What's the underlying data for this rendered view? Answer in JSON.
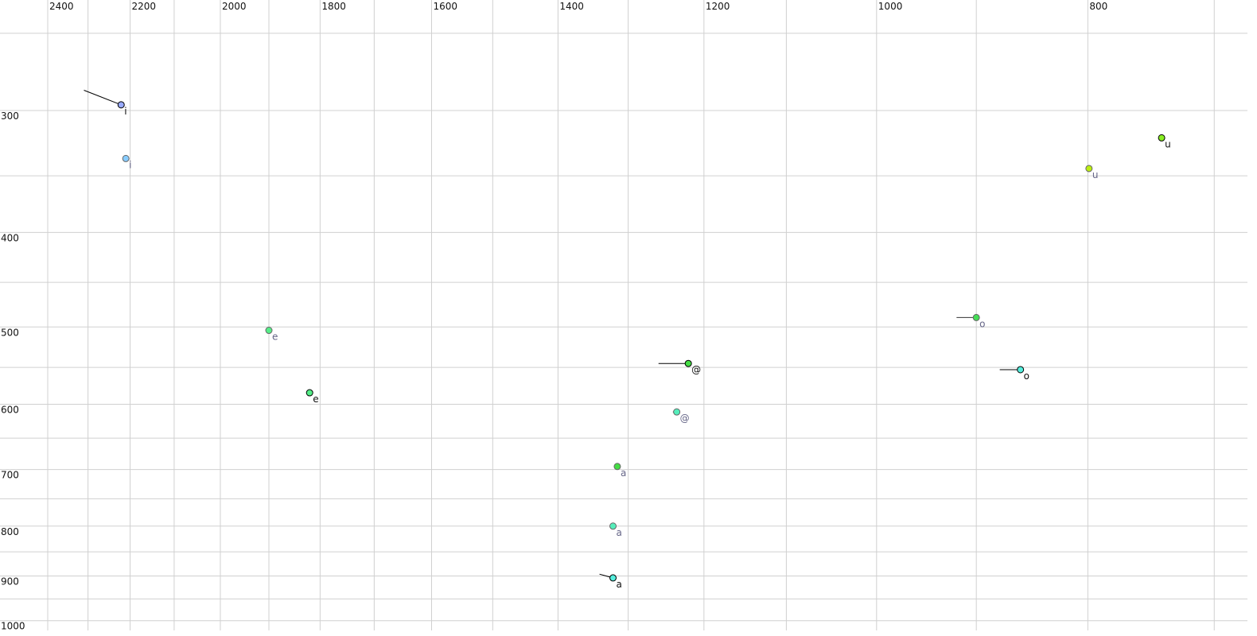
{
  "chart_data": {
    "type": "scatter",
    "title": "",
    "xlabel": "",
    "ylabel": "",
    "x_scale": "log",
    "y_scale": "log",
    "x_reversed": true,
    "xlim": [
      2400,
      700
    ],
    "ylim": [
      250,
      1000
    ],
    "grid": true,
    "x_ticks": [
      "2400",
      "2200",
      "2000",
      "1800",
      "1600",
      "1400",
      "1200",
      "1000",
      "800"
    ],
    "y_ticks": [
      "300",
      "400",
      "500",
      "600",
      "700",
      "800",
      "900",
      "1000"
    ],
    "label_colors": {
      "black": "#111111",
      "gray": "#666688"
    },
    "points": [
      {
        "label": "i",
        "x": 2221,
        "y": 296,
        "trail_from": [
          2310,
          286
        ],
        "color": "#99aaff",
        "style": "black"
      },
      {
        "label": "i",
        "x": 2210,
        "y": 336,
        "color": "#88ccff",
        "style": "gray"
      },
      {
        "label": "u",
        "x": 740,
        "y": 320,
        "color": "#88ee22",
        "style": "black"
      },
      {
        "label": "u",
        "x": 799,
        "y": 344,
        "color": "#bbee11",
        "style": "gray"
      },
      {
        "label": "e",
        "x": 1900,
        "y": 504,
        "color": "#55ee88",
        "style": "gray"
      },
      {
        "label": "e",
        "x": 1820,
        "y": 584,
        "color": "#55ee88",
        "style": "black"
      },
      {
        "label": "@",
        "x": 1220,
        "y": 545,
        "trail_from": [
          1259,
          545
        ],
        "color": "#44dd44",
        "style": "black"
      },
      {
        "label": "@",
        "x": 1235,
        "y": 611,
        "trail_from": [
          1240,
          611
        ],
        "color": "#55eebb",
        "style": "gray"
      },
      {
        "label": "a",
        "x": 1315,
        "y": 695,
        "color": "#44dd44",
        "style": "gray"
      },
      {
        "label": "a",
        "x": 1321,
        "y": 800,
        "color": "#55eebb",
        "style": "gray"
      },
      {
        "label": "a",
        "x": 1321,
        "y": 904,
        "trail_from": [
          1340,
          896
        ],
        "color": "#55eedd",
        "style": "black"
      },
      {
        "label": "o",
        "x": 900,
        "y": 489,
        "trail_from": [
          919,
          489
        ],
        "color": "#44dd55",
        "style": "gray"
      },
      {
        "label": "o",
        "x": 859,
        "y": 553,
        "trail_from": [
          878,
          553
        ],
        "color": "#55eedd",
        "style": "black"
      }
    ]
  }
}
